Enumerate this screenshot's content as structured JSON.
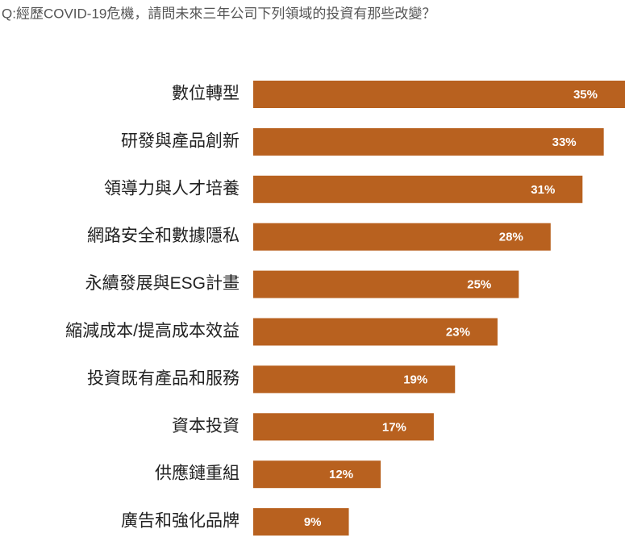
{
  "chart_data": {
    "type": "bar",
    "orientation": "horizontal",
    "title": "Q:經歷COVID-19危機，請問未來三年公司下列領域的投資有那些改變？",
    "categories": [
      "數位轉型",
      "研發與產品創新",
      "領導力與人才培養",
      "網路安全和數據隱私",
      "永續發展與ESG計畫",
      "縮減成本/提高成本效益",
      "投資既有產品和服務",
      "資本投資",
      "供應鏈重組",
      "廣告和強化品牌"
    ],
    "values": [
      35,
      33,
      31,
      28,
      25,
      23,
      19,
      17,
      12,
      9
    ],
    "value_labels": [
      "35%",
      "33%",
      "31%",
      "28%",
      "25%",
      "23%",
      "19%",
      "17%",
      "12%",
      "9%"
    ],
    "color": "#b8611f",
    "xlim": [
      0,
      35
    ]
  }
}
